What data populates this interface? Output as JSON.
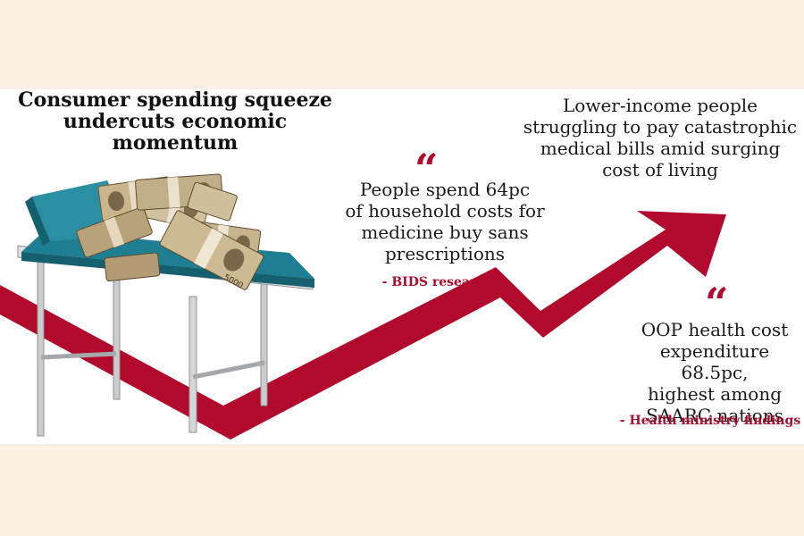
{
  "headline": {
    "line1": "Consumer spending squeeze",
    "line2": "undercuts economic",
    "line3": "momentum"
  },
  "callout": {
    "line1": "Lower-income people",
    "line2": "struggling to pay catastrophic",
    "line3": "medical bills amid surging",
    "line4": "cost of living"
  },
  "quote1": {
    "mark": "“",
    "line1": "People spend 64pc",
    "line2": "of household costs for",
    "line3": "medicine buy sans",
    "line4": "prescriptions",
    "attribution": "- BIDS researcher"
  },
  "quote2": {
    "mark": "“",
    "line1": "OOP health cost",
    "line2": "expenditure 68.5pc,",
    "line3": "highest among",
    "line4": "SAARC nations",
    "attribution": "- Health ministry findings"
  },
  "illustration": {
    "banknote_text": "5000"
  },
  "colors": {
    "accent_red": "#b20a2c",
    "background": "#fcf0e4",
    "bed_teal": "#1f7f92"
  }
}
